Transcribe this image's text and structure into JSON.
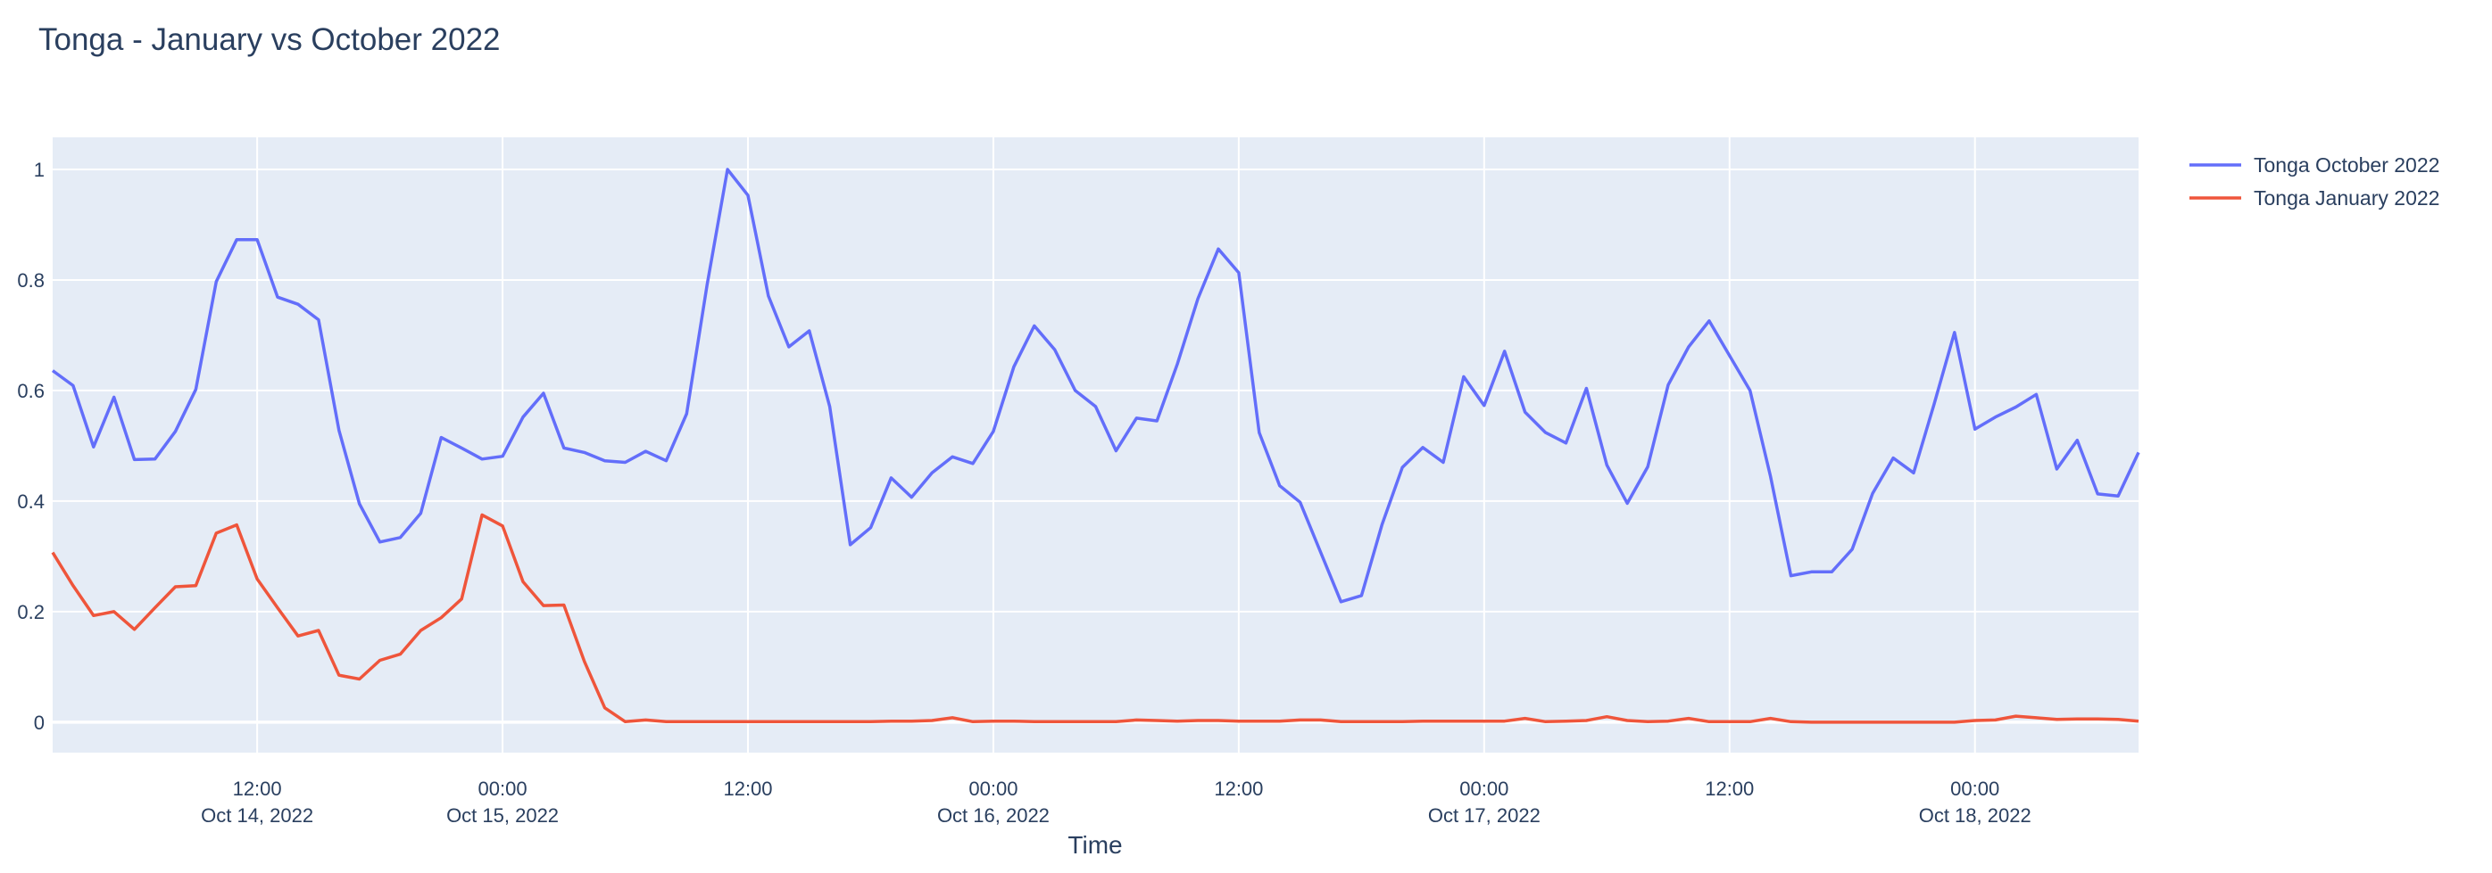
{
  "chart_data": {
    "type": "line",
    "title": "Tonga - January vs October 2022",
    "xlabel": "Time",
    "ylabel": "",
    "ylim": [
      -0.055,
      1.058
    ],
    "grid": true,
    "legend_position": "top-right, outside plot",
    "background_color": "#E5ECF6",
    "y_ticks": [
      {
        "value": 0,
        "label": "0"
      },
      {
        "value": 0.2,
        "label": "0.2"
      },
      {
        "value": 0.4,
        "label": "0.4"
      },
      {
        "value": 0.6,
        "label": "0.6"
      },
      {
        "value": 0.8,
        "label": "0.8"
      },
      {
        "value": 1,
        "label": "1"
      }
    ],
    "x_ticks": [
      {
        "value": "2022-10-14 12:00",
        "time": "12:00",
        "date": "Oct 14, 2022"
      },
      {
        "value": "2022-10-15 00:00",
        "time": "00:00",
        "date": "Oct 15, 2022"
      },
      {
        "value": "2022-10-15 12:00",
        "time": "12:00",
        "date": ""
      },
      {
        "value": "2022-10-16 00:00",
        "time": "00:00",
        "date": "Oct 16, 2022"
      },
      {
        "value": "2022-10-16 12:00",
        "time": "12:00",
        "date": ""
      },
      {
        "value": "2022-10-17 00:00",
        "time": "00:00",
        "date": "Oct 17, 2022"
      },
      {
        "value": "2022-10-17 12:00",
        "time": "12:00",
        "date": ""
      },
      {
        "value": "2022-10-18 00:00",
        "time": "00:00",
        "date": "Oct 18, 2022"
      }
    ],
    "x": [
      "2022-10-14 02:00",
      "2022-10-14 03:00",
      "2022-10-14 04:00",
      "2022-10-14 05:00",
      "2022-10-14 06:00",
      "2022-10-14 07:00",
      "2022-10-14 08:00",
      "2022-10-14 09:00",
      "2022-10-14 10:00",
      "2022-10-14 11:00",
      "2022-10-14 12:00",
      "2022-10-14 13:00",
      "2022-10-14 14:00",
      "2022-10-14 15:00",
      "2022-10-14 16:00",
      "2022-10-14 17:00",
      "2022-10-14 18:00",
      "2022-10-14 19:00",
      "2022-10-14 20:00",
      "2022-10-14 21:00",
      "2022-10-14 22:00",
      "2022-10-14 23:00",
      "2022-10-15 00:00",
      "2022-10-15 01:00",
      "2022-10-15 02:00",
      "2022-10-15 03:00",
      "2022-10-15 04:00",
      "2022-10-15 05:00",
      "2022-10-15 06:00",
      "2022-10-15 07:00",
      "2022-10-15 08:00",
      "2022-10-15 09:00",
      "2022-10-15 10:00",
      "2022-10-15 11:00",
      "2022-10-15 12:00",
      "2022-10-15 13:00",
      "2022-10-15 14:00",
      "2022-10-15 15:00",
      "2022-10-15 16:00",
      "2022-10-15 17:00",
      "2022-10-15 18:00",
      "2022-10-15 19:00",
      "2022-10-15 20:00",
      "2022-10-15 21:00",
      "2022-10-15 22:00",
      "2022-10-15 23:00",
      "2022-10-16 00:00",
      "2022-10-16 01:00",
      "2022-10-16 02:00",
      "2022-10-16 03:00",
      "2022-10-16 04:00",
      "2022-10-16 05:00",
      "2022-10-16 06:00",
      "2022-10-16 07:00",
      "2022-10-16 08:00",
      "2022-10-16 09:00",
      "2022-10-16 10:00",
      "2022-10-16 11:00",
      "2022-10-16 12:00",
      "2022-10-16 13:00",
      "2022-10-16 14:00",
      "2022-10-16 15:00",
      "2022-10-16 16:00",
      "2022-10-16 17:00",
      "2022-10-16 18:00",
      "2022-10-16 19:00",
      "2022-10-16 20:00",
      "2022-10-16 21:00",
      "2022-10-16 22:00",
      "2022-10-16 23:00",
      "2022-10-17 00:00",
      "2022-10-17 01:00",
      "2022-10-17 02:00",
      "2022-10-17 03:00",
      "2022-10-17 04:00",
      "2022-10-17 05:00",
      "2022-10-17 06:00",
      "2022-10-17 07:00",
      "2022-10-17 08:00",
      "2022-10-17 09:00",
      "2022-10-17 10:00",
      "2022-10-17 11:00",
      "2022-10-17 12:00",
      "2022-10-17 13:00",
      "2022-10-17 14:00",
      "2022-10-17 15:00",
      "2022-10-17 16:00",
      "2022-10-17 17:00",
      "2022-10-17 18:00",
      "2022-10-17 19:00",
      "2022-10-17 20:00",
      "2022-10-17 21:00",
      "2022-10-17 22:00",
      "2022-10-17 23:00",
      "2022-10-18 00:00",
      "2022-10-18 01:00",
      "2022-10-18 02:00",
      "2022-10-18 03:00",
      "2022-10-18 04:00",
      "2022-10-18 05:00",
      "2022-10-18 06:00",
      "2022-10-18 07:00",
      "2022-10-18 08:00"
    ],
    "series": [
      {
        "name": "Tonga October 2022",
        "color": "#636EFA",
        "values": [
          0.636,
          0.609,
          0.498,
          0.588,
          0.475,
          0.476,
          0.526,
          0.602,
          0.797,
          0.873,
          0.873,
          0.769,
          0.756,
          0.728,
          0.528,
          0.395,
          0.326,
          0.334,
          0.378,
          0.515,
          0.496,
          0.476,
          0.481,
          0.552,
          0.595,
          0.496,
          0.488,
          0.473,
          0.47,
          0.49,
          0.473,
          0.558,
          0.791,
          1.0,
          0.953,
          0.771,
          0.679,
          0.708,
          0.571,
          0.321,
          0.352,
          0.442,
          0.407,
          0.451,
          0.48,
          0.468,
          0.526,
          0.643,
          0.717,
          0.674,
          0.6,
          0.571,
          0.491,
          0.55,
          0.545,
          0.648,
          0.766,
          0.856,
          0.813,
          0.524,
          0.428,
          0.398,
          0.308,
          0.218,
          0.229,
          0.357,
          0.461,
          0.497,
          0.47,
          0.625,
          0.573,
          0.671,
          0.561,
          0.524,
          0.505,
          0.604,
          0.465,
          0.396,
          0.462,
          0.61,
          0.679,
          0.726,
          0.663,
          0.6,
          0.445,
          0.265,
          0.272,
          0.272,
          0.313,
          0.414,
          0.478,
          0.451,
          0.575,
          0.705,
          0.53,
          0.552,
          0.57,
          0.593,
          0.458,
          0.51,
          0.413,
          0.409,
          0.488
        ]
      },
      {
        "name": "Tonga January 2022",
        "color": "#EF553B",
        "values": [
          0.307,
          0.247,
          0.193,
          0.2,
          0.168,
          0.207,
          0.245,
          0.247,
          0.342,
          0.357,
          0.259,
          0.207,
          0.156,
          0.166,
          0.085,
          0.078,
          0.112,
          0.123,
          0.166,
          0.189,
          0.223,
          0.375,
          0.355,
          0.254,
          0.211,
          0.212,
          0.11,
          0.026,
          0.001,
          0.004,
          0.001,
          0.001,
          0.001,
          0.001,
          0.001,
          0.001,
          0.001,
          0.001,
          0.001,
          0.001,
          0.001,
          0.002,
          0.002,
          0.003,
          0.008,
          0.001,
          0.002,
          0.002,
          0.001,
          0.001,
          0.001,
          0.001,
          0.001,
          0.004,
          0.003,
          0.002,
          0.003,
          0.003,
          0.002,
          0.002,
          0.002,
          0.004,
          0.004,
          0.001,
          0.001,
          0.001,
          0.001,
          0.002,
          0.002,
          0.002,
          0.002,
          0.002,
          0.007,
          0.001,
          0.002,
          0.003,
          0.01,
          0.003,
          0.001,
          0.002,
          0.007,
          0.001,
          0.001,
          0.001,
          0.007,
          0.001,
          0,
          0,
          0,
          0,
          0,
          0,
          0,
          0,
          0.003,
          0.004,
          0.011,
          0.008,
          0.005,
          0.006,
          0.006,
          0.005,
          0.002
        ]
      }
    ]
  }
}
